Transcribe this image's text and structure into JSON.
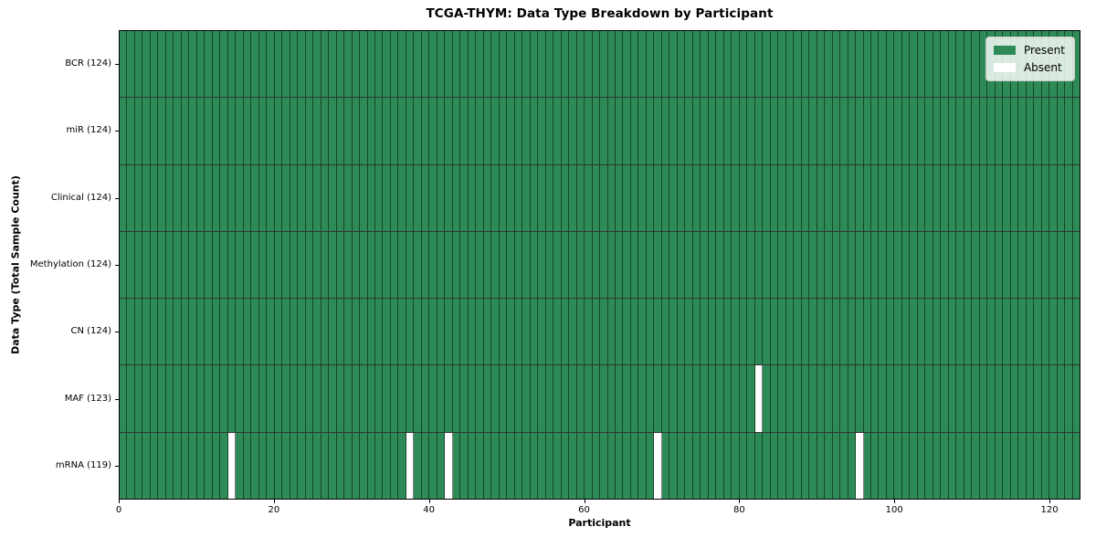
{
  "colors": {
    "present": "#2e8b57",
    "absent": "#ffffff",
    "cell_border": "rgba(0,0,0,0.5)",
    "legend_background": "#f1f4f1"
  },
  "chart_data": {
    "type": "heatmap",
    "title": "TCGA-THYM: Data Type Breakdown by Participant",
    "xlabel": "Participant",
    "ylabel": "Data Type (Total Sample Count)",
    "legend_entries": [
      "Present",
      "Absent"
    ],
    "legend_position": "upper right",
    "grid": "cell-borders",
    "n_participants": 124,
    "xlim": [
      0,
      124
    ],
    "x_ticks": [
      0,
      20,
      40,
      60,
      80,
      100,
      120
    ],
    "rows": [
      {
        "label": "BCR (124)",
        "data_type": "BCR",
        "present_count": 124,
        "absent_participants": []
      },
      {
        "label": "miR (124)",
        "data_type": "miR",
        "present_count": 124,
        "absent_participants": []
      },
      {
        "label": "Clinical (124)",
        "data_type": "Clinical",
        "present_count": 124,
        "absent_participants": []
      },
      {
        "label": "Methylation (124)",
        "data_type": "Methylation",
        "present_count": 124,
        "absent_participants": []
      },
      {
        "label": "CN (124)",
        "data_type": "CN",
        "present_count": 124,
        "absent_participants": []
      },
      {
        "label": "MAF (123)",
        "data_type": "MAF",
        "present_count": 123,
        "absent_participants": [
          82
        ]
      },
      {
        "label": "mRNA (119)",
        "data_type": "mRNA",
        "present_count": 119,
        "absent_participants": [
          14,
          37,
          42,
          69,
          95
        ]
      }
    ]
  }
}
